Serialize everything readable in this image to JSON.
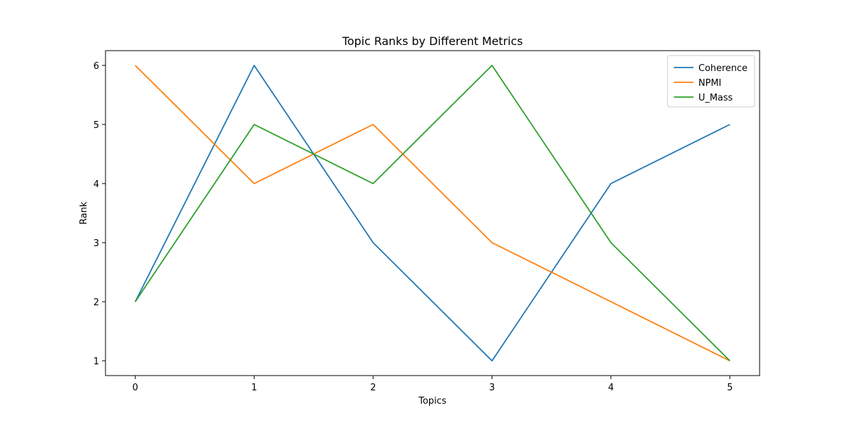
{
  "chart_data": {
    "type": "line",
    "title": "Topic Ranks by Different Metrics",
    "xlabel": "Topics",
    "ylabel": "Rank",
    "x": [
      0,
      1,
      2,
      3,
      4,
      5
    ],
    "xticks": [
      "0",
      "1",
      "2",
      "3",
      "4",
      "5"
    ],
    "yticks": [
      "1",
      "2",
      "3",
      "4",
      "5",
      "6"
    ],
    "xlim": [
      -0.25,
      5.25
    ],
    "ylim": [
      0.75,
      6.25
    ],
    "grid": false,
    "legend_position": "top-right",
    "series": [
      {
        "name": "Coherence",
        "color": "#1f77b4",
        "values": [
          2,
          6,
          3,
          1,
          4,
          5
        ]
      },
      {
        "name": "NPMI",
        "color": "#ff7f0e",
        "values": [
          6,
          4,
          5,
          3,
          2,
          1
        ]
      },
      {
        "name": "U_Mass",
        "color": "#2ca02c",
        "values": [
          2,
          5,
          4,
          6,
          3,
          1
        ]
      }
    ]
  }
}
